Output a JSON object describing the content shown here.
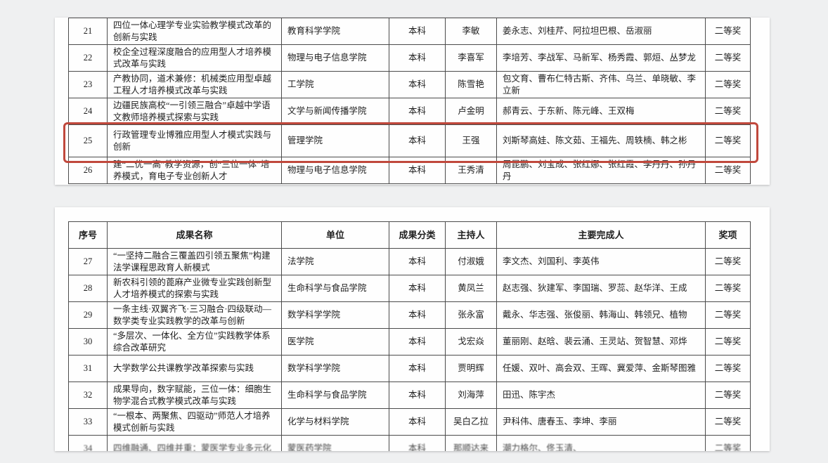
{
  "columns": [
    {
      "key": "no",
      "label": "序号",
      "align": "center"
    },
    {
      "key": "name",
      "label": "成果名称",
      "align": "left"
    },
    {
      "key": "unit",
      "label": "单位",
      "align": "left"
    },
    {
      "key": "category",
      "label": "成果分类",
      "align": "center"
    },
    {
      "key": "host",
      "label": "主持人",
      "align": "center"
    },
    {
      "key": "members",
      "label": "主要完成人",
      "align": "left"
    },
    {
      "key": "award",
      "label": "奖项",
      "align": "center"
    }
  ],
  "page1": {
    "rows": [
      {
        "no": "21",
        "name": "四位一体心理学专业实验教学模式改革的创新与实践",
        "unit": "教育科学学院",
        "category": "本科",
        "host": "李敏",
        "members": "姜永志、刘桂芹、阿拉坦巴根、岳淑丽",
        "award": "二等奖"
      },
      {
        "no": "22",
        "name": "校企全过程深度融合的应用型人才培养模式改革与实践",
        "unit": "物理与电子信息学院",
        "category": "本科",
        "host": "李喜军",
        "members": "李培芳、李战军、马新军、杨秀霞、郭烜、丛梦龙",
        "award": "二等奖"
      },
      {
        "no": "23",
        "name": "产教协同，道术兼修：机械类应用型卓越工程人才培养模式改革与实践",
        "unit": "工学院",
        "category": "本科",
        "host": "陈雪艳",
        "members": "包文育、曹布仁特古斯、齐伟、乌兰、单晓敏、李立新",
        "award": "二等奖"
      },
      {
        "no": "24",
        "name": "边疆民族高校“一引领三融合”卓越中学语文教师培养模式探索与实践",
        "unit": "文学与新闻传播学院",
        "category": "本科",
        "host": "卢金明",
        "members": "郝青云、于东新、陈元峰、王双梅",
        "award": "二等奖"
      },
      {
        "no": "25",
        "name": "行政管理专业博雅应用型人才模式实践与创新",
        "unit": "管理学院",
        "category": "本科",
        "host": "王强",
        "members": "刘斯琴高娃、陈文茹、王福先、周轶楠、韩之彬",
        "award": "二等奖",
        "tall": true
      },
      {
        "no": "26",
        "name": "建“二优一高”教学资源，创“三位一体”培养模式，育电子专业创新人才",
        "unit": "物理与电子信息学院",
        "category": "本科",
        "host": "王秀清",
        "members": "周昆鹏、刘宝成、张红娜、张红霞、李丹丹、孙丹丹",
        "award": "二等奖"
      }
    ]
  },
  "page2": {
    "rows": [
      {
        "no": "27",
        "name": "“一坚持二融合三覆盖四引领五聚焦”构建法学课程思政育人新模式",
        "unit": "法学院",
        "category": "本科",
        "host": "付淑娥",
        "members": "李文杰、刘国利、李英伟",
        "award": "二等奖"
      },
      {
        "no": "28",
        "name": "新农科引领的蓖麻产业微专业实践创新型人才培养模式的探索与实践",
        "unit": "生命科学与食品学院",
        "category": "本科",
        "host": "黄凤兰",
        "members": "赵志强、狄建军、李国瑞、罗蕊、赵华洋、王成",
        "award": "二等奖"
      },
      {
        "no": "29",
        "name": "一条主线·双翼齐飞·三习融合·四级联动—数学类专业实践教学的改革与创新",
        "unit": "数学科学学院",
        "category": "本科",
        "host": "张永富",
        "members": "戴永、华志强、张俊丽、韩海山、韩领兄、植物",
        "award": "二等奖"
      },
      {
        "no": "30",
        "name": "“多层次、一体化、全方位”实践教学体系综合改革研究",
        "unit": "医学院",
        "category": "本科",
        "host": "戈宏焱",
        "members": "董丽刚、赵晗、裴云涌、王灵站、贺智慧、邓烨",
        "award": "二等奖"
      },
      {
        "no": "31",
        "name": "大学数学公共课教学改革探索与实践",
        "unit": "数学科学学院",
        "category": "本科",
        "host": "贾明辉",
        "members": "任媛、双叶、高会双、王晖、冀爱萍、金斯琴图雅",
        "award": "二等奖"
      },
      {
        "no": "32",
        "name": "成果导向，数字赋能，三位一体：细胞生物学混合式教学模式改革与实践",
        "unit": "生命科学与食品学院",
        "category": "本科",
        "host": "刘海萍",
        "members": "田迅、陈宇杰",
        "award": "二等奖"
      },
      {
        "no": "33",
        "name": "“一根本、两聚焦、四驱动”师范人才培养模式创新与实践",
        "unit": "化学与材料学院",
        "category": "本科",
        "host": "吴白乙拉",
        "members": "尹科伟、唐春玉、李坤、李丽",
        "award": "二等奖"
      },
      {
        "no": "34",
        "name": "四维融通、四维并重：蒙医学专业多元化",
        "unit": "蒙医药学院",
        "category": "本科",
        "host": "那顺达来",
        "members": "潮力格尔、佟玉清、",
        "award": "二等奖",
        "partial": true
      }
    ]
  },
  "highlight": {
    "target_row_no": "25",
    "color": "#c0483c"
  }
}
